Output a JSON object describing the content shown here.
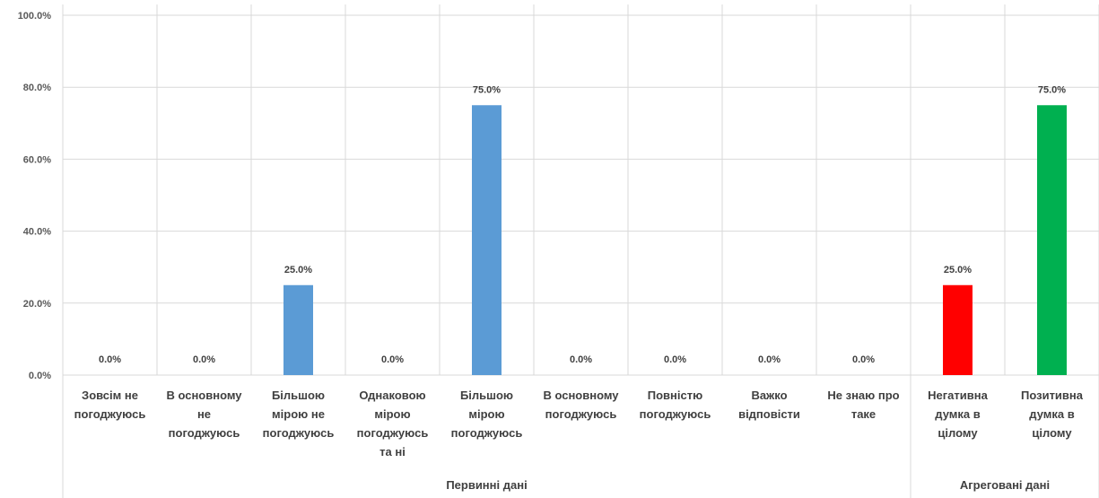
{
  "chart_data": {
    "type": "bar",
    "categories": [
      [
        "Зовсім не",
        "погоджуюсь"
      ],
      [
        "В основному",
        "не",
        "погоджуюсь"
      ],
      [
        "Більшою",
        "мірою не",
        "погоджуюсь"
      ],
      [
        "Однаковою",
        "мірою",
        "погоджуюсь",
        "та ні"
      ],
      [
        "Більшою",
        "мірою",
        "погоджуюсь"
      ],
      [
        "В основному",
        "погоджуюсь"
      ],
      [
        "Повністю",
        "погоджуюсь"
      ],
      [
        "Важко",
        "відповісти"
      ],
      [
        "Не знаю про",
        "таке"
      ],
      [
        "Негативна",
        "думка в",
        "цілому"
      ],
      [
        "Позитивна",
        "думка в",
        "цілому"
      ]
    ],
    "values": [
      0,
      0,
      25,
      0,
      75,
      0,
      0,
      0,
      0,
      25,
      75
    ],
    "data_labels": [
      "0.0%",
      "0.0%",
      "25.0%",
      "0.0%",
      "75.0%",
      "0.0%",
      "0.0%",
      "0.0%",
      "0.0%",
      "25.0%",
      "75.0%"
    ],
    "bar_colors": [
      "#5b9bd5",
      "#5b9bd5",
      "#5b9bd5",
      "#5b9bd5",
      "#5b9bd5",
      "#5b9bd5",
      "#5b9bd5",
      "#5b9bd5",
      "#5b9bd5",
      "#ff0000",
      "#00b050"
    ],
    "groups": [
      {
        "label": "Первинні дані",
        "count": 9
      },
      {
        "label": "Агреговані дані",
        "count": 2
      }
    ],
    "ylim": [
      0,
      100
    ],
    "yticks": [
      0,
      20,
      40,
      60,
      80,
      100
    ],
    "ytick_labels": [
      "0.0%",
      "20.0%",
      "40.0%",
      "60.0%",
      "80.0%",
      "100.0%"
    ],
    "grid": true,
    "xlabel": "",
    "ylabel": "",
    "title": ""
  },
  "colors": {
    "grid": "#d9d9d9",
    "axis_text": "#595959",
    "label_text": "#404040"
  }
}
